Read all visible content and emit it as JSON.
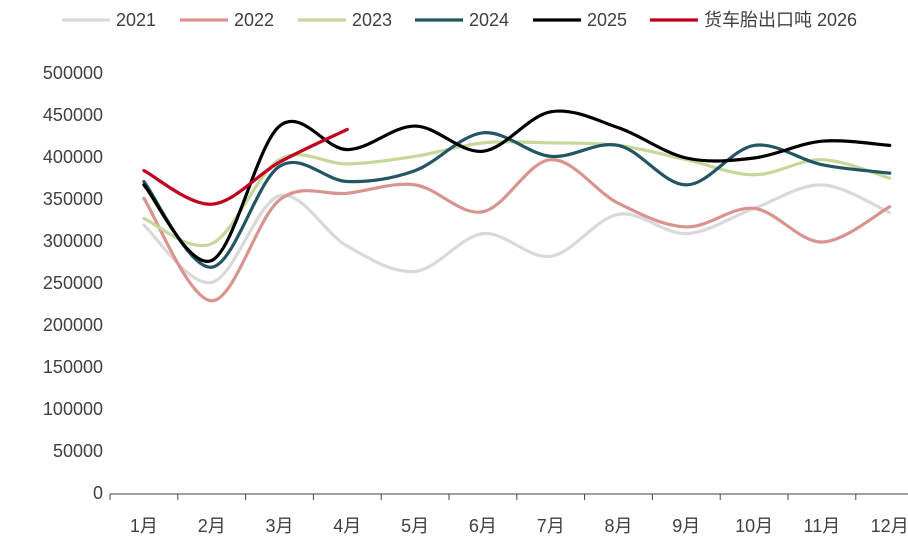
{
  "chart_data": {
    "type": "line",
    "categories": [
      "1月",
      "2月",
      "3月",
      "4月",
      "5月",
      "6月",
      "7月",
      "8月",
      "9月",
      "10月",
      "11月",
      "12月"
    ],
    "series": [
      {
        "name": "2021",
        "color": "#d9d9d9",
        "values": [
          320000,
          252000,
          355000,
          295000,
          265000,
          310000,
          283000,
          333000,
          310000,
          340000,
          368000,
          335000
        ]
      },
      {
        "name": "2022",
        "color": "#d9948f",
        "values": [
          352000,
          230000,
          350000,
          358000,
          368000,
          336000,
          398000,
          346000,
          318000,
          340000,
          300000,
          342000
        ]
      },
      {
        "name": "2023",
        "color": "#c5d89a",
        "values": [
          328000,
          298000,
          398000,
          393000,
          402000,
          418000,
          418000,
          415000,
          398000,
          380000,
          398000,
          376000
        ]
      },
      {
        "name": "2024",
        "color": "#215662",
        "values": [
          372000,
          270000,
          390000,
          372000,
          385000,
          430000,
          402000,
          415000,
          368000,
          415000,
          392000,
          382000
        ]
      },
      {
        "name": "2025",
        "color": "#000000",
        "values": [
          368000,
          278000,
          438000,
          410000,
          438000,
          408000,
          455000,
          436000,
          400000,
          400000,
          420000,
          415000
        ]
      },
      {
        "name": "货车胎出口吨 2026",
        "color": "#c0001f",
        "values": [
          385000,
          345000,
          395000,
          434000,
          null,
          null,
          null,
          null,
          null,
          null,
          null,
          null
        ]
      }
    ],
    "ylim": [
      0,
      500000
    ],
    "yticks": [
      0,
      50000,
      100000,
      150000,
      200000,
      250000,
      300000,
      350000,
      400000,
      450000,
      500000
    ],
    "grid": false,
    "legend": "top"
  }
}
